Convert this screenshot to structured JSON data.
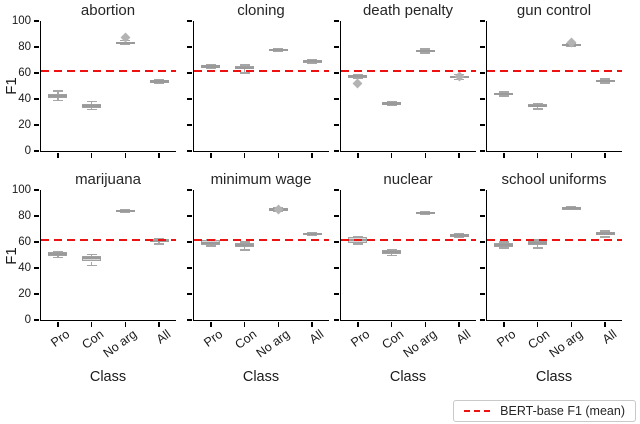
{
  "chart_data": {
    "type": "box",
    "categories": [
      "Pro",
      "Con",
      "No arg",
      "All"
    ],
    "xlabel": "Class",
    "ylabel": "F1",
    "ylim": [
      0,
      100
    ],
    "yticks": [
      0,
      20,
      40,
      60,
      80,
      100
    ],
    "grid": false,
    "ref_line": {
      "value": 61.5,
      "label": "BERT-base F1 (mean)",
      "color": "#ee1111",
      "style": "dashed",
      "legend_position": "bottom-right"
    },
    "subplots": [
      {
        "title": "abortion",
        "boxes": [
          {
            "lo": 39,
            "q1": 41,
            "med": 42.5,
            "q3": 44,
            "hi": 46,
            "outliers": []
          },
          {
            "lo": 32,
            "q1": 33,
            "med": 34.5,
            "q3": 36.5,
            "hi": 38,
            "outliers": []
          },
          {
            "lo": 82,
            "q1": 82.5,
            "med": 83,
            "q3": 84,
            "hi": 85,
            "outliers": [
              87
            ]
          },
          {
            "lo": 52,
            "q1": 53,
            "med": 53.5,
            "q3": 54.5,
            "hi": 55,
            "outliers": []
          }
        ]
      },
      {
        "title": "cloning",
        "boxes": [
          {
            "lo": 63.5,
            "q1": 64,
            "med": 65,
            "q3": 66,
            "hi": 66.5,
            "outliers": []
          },
          {
            "lo": 60,
            "q1": 63,
            "med": 64,
            "q3": 65.5,
            "hi": 66,
            "outliers": []
          },
          {
            "lo": 77,
            "q1": 77.5,
            "med": 78,
            "q3": 78.5,
            "hi": 79,
            "outliers": []
          },
          {
            "lo": 67.5,
            "q1": 68,
            "med": 69,
            "q3": 70,
            "hi": 70.5,
            "outliers": []
          }
        ]
      },
      {
        "title": "death penalty",
        "boxes": [
          {
            "lo": 56,
            "q1": 56.5,
            "med": 57.5,
            "q3": 58.5,
            "hi": 59,
            "outliers": [
              52
            ]
          },
          {
            "lo": 35.5,
            "q1": 36,
            "med": 36.5,
            "q3": 37.5,
            "hi": 38,
            "outliers": []
          },
          {
            "lo": 75.5,
            "q1": 76,
            "med": 77,
            "q3": 78,
            "hi": 78.5,
            "outliers": []
          },
          {
            "lo": 55,
            "q1": 56,
            "med": 57,
            "q3": 58,
            "hi": 59,
            "outliers": [
              57
            ]
          }
        ]
      },
      {
        "title": "gun control",
        "boxes": [
          {
            "lo": 42.5,
            "q1": 43,
            "med": 44,
            "q3": 45,
            "hi": 45.5,
            "outliers": []
          },
          {
            "lo": 32.5,
            "q1": 33.5,
            "med": 34.5,
            "q3": 36,
            "hi": 36.5,
            "outliers": []
          },
          {
            "lo": 80.5,
            "q1": 81,
            "med": 81.5,
            "q3": 82,
            "hi": 82.5,
            "outliers": [
              83.5
            ]
          },
          {
            "lo": 52.5,
            "q1": 53,
            "med": 54,
            "q3": 55,
            "hi": 55.5,
            "outliers": []
          }
        ]
      },
      {
        "title": "marijuana",
        "boxes": [
          {
            "lo": 48,
            "q1": 49.5,
            "med": 51,
            "q3": 52,
            "hi": 52.5,
            "outliers": []
          },
          {
            "lo": 42,
            "q1": 45,
            "med": 47.5,
            "q3": 49.5,
            "hi": 50.5,
            "outliers": []
          },
          {
            "lo": 83,
            "q1": 83.5,
            "med": 84,
            "q3": 84.5,
            "hi": 85,
            "outliers": []
          },
          {
            "lo": 58.5,
            "q1": 60,
            "med": 61,
            "q3": 62,
            "hi": 62.5,
            "outliers": []
          }
        ]
      },
      {
        "title": "minimum wage",
        "boxes": [
          {
            "lo": 57,
            "q1": 58,
            "med": 59.5,
            "q3": 61.5,
            "hi": 62,
            "outliers": []
          },
          {
            "lo": 54,
            "q1": 56.5,
            "med": 58,
            "q3": 59.5,
            "hi": 60,
            "outliers": []
          },
          {
            "lo": 84,
            "q1": 84.5,
            "med": 85,
            "q3": 85.5,
            "hi": 86,
            "outliers": [
              85
            ]
          },
          {
            "lo": 65,
            "q1": 65.5,
            "med": 66,
            "q3": 67,
            "hi": 67.5,
            "outliers": []
          }
        ]
      },
      {
        "title": "nuclear",
        "boxes": [
          {
            "lo": 58.5,
            "q1": 59.5,
            "med": 61.5,
            "q3": 63.5,
            "hi": 64,
            "outliers": []
          },
          {
            "lo": 49.5,
            "q1": 51,
            "med": 52.5,
            "q3": 53.5,
            "hi": 54,
            "outliers": []
          },
          {
            "lo": 81.5,
            "q1": 82,
            "med": 82.5,
            "q3": 83,
            "hi": 83.5,
            "outliers": []
          },
          {
            "lo": 63.5,
            "q1": 64,
            "med": 65,
            "q3": 66,
            "hi": 66.5,
            "outliers": []
          }
        ]
      },
      {
        "title": "school uniforms",
        "boxes": [
          {
            "lo": 55.5,
            "q1": 56.5,
            "med": 57.5,
            "q3": 59.5,
            "hi": 60,
            "outliers": []
          },
          {
            "lo": 55.5,
            "q1": 57.5,
            "med": 59,
            "q3": 60.5,
            "hi": 61.5,
            "outliers": []
          },
          {
            "lo": 85,
            "q1": 85.5,
            "med": 86,
            "q3": 86.5,
            "hi": 87,
            "outliers": []
          },
          {
            "lo": 64,
            "q1": 65,
            "med": 66.5,
            "q3": 68,
            "hi": 68.5,
            "outliers": []
          }
        ]
      }
    ]
  }
}
